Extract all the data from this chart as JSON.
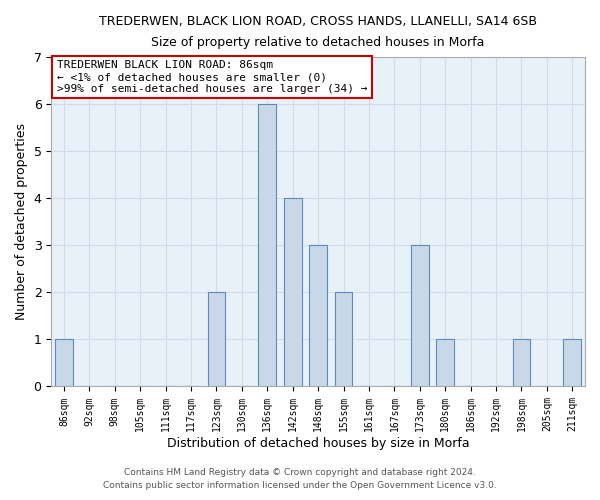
{
  "title": "TREDERWEN, BLACK LION ROAD, CROSS HANDS, LLANELLI, SA14 6SB",
  "subtitle": "Size of property relative to detached houses in Morfa",
  "xlabel": "Distribution of detached houses by size in Morfa",
  "ylabel": "Number of detached properties",
  "footer_line1": "Contains HM Land Registry data © Crown copyright and database right 2024.",
  "footer_line2": "Contains public sector information licensed under the Open Government Licence v3.0.",
  "bin_labels": [
    "86sqm",
    "92sqm",
    "98sqm",
    "105sqm",
    "111sqm",
    "117sqm",
    "123sqm",
    "130sqm",
    "136sqm",
    "142sqm",
    "148sqm",
    "155sqm",
    "161sqm",
    "167sqm",
    "173sqm",
    "180sqm",
    "186sqm",
    "192sqm",
    "198sqm",
    "205sqm",
    "211sqm"
  ],
  "bar_heights": [
    1,
    0,
    0,
    0,
    0,
    0,
    2,
    0,
    6,
    4,
    3,
    2,
    0,
    0,
    3,
    1,
    0,
    0,
    1,
    0,
    1
  ],
  "bar_color": "#c8d8e8",
  "bar_edge_color": "#5b8db8",
  "ylim": [
    0,
    7
  ],
  "yticks": [
    0,
    1,
    2,
    3,
    4,
    5,
    6,
    7
  ],
  "annotation_box_edge": "#cc0000",
  "annotation_title": "TREDERWEN BLACK LION ROAD: 86sqm",
  "annotation_line1": "← <1% of detached houses are smaller (0)",
  "annotation_line2": ">99% of semi-detached houses are larger (34) →",
  "grid_color": "#d0dce8",
  "background_color": "#ffffff",
  "plot_bg_color": "#e8f0f8"
}
